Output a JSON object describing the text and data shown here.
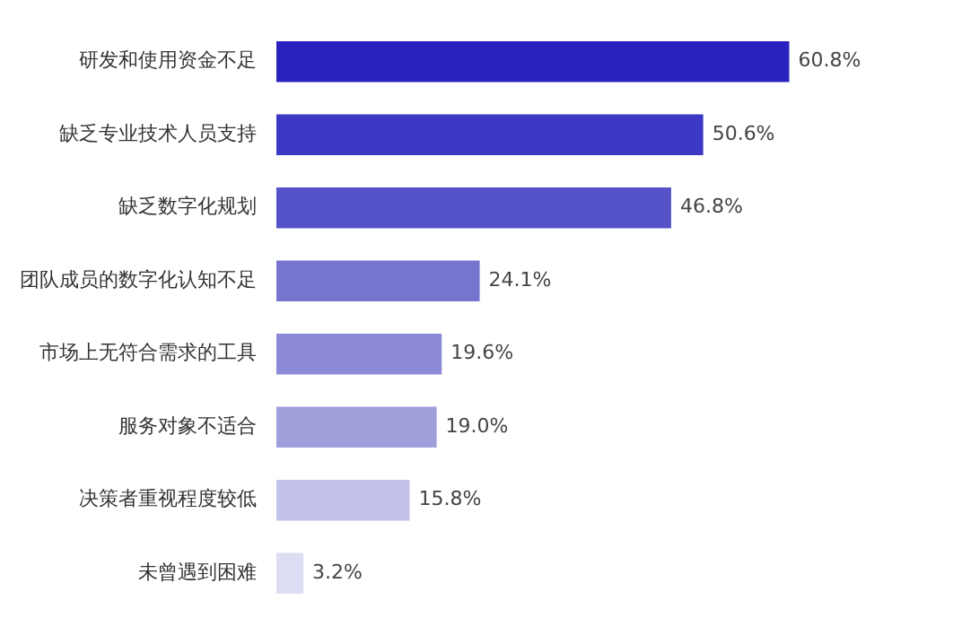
{
  "chart_data": {
    "type": "bar",
    "orientation": "horizontal",
    "categories": [
      "研发和使用资金不足",
      "缺乏专业技术人员支持",
      "缺乏数字化规划",
      "团队成员的数字化认知不足",
      "市场上无符合需求的工具",
      "服务对象不适合",
      "决策者重视程度较低",
      "未曾遇到困难"
    ],
    "values": [
      60.8,
      50.6,
      46.8,
      24.1,
      19.6,
      19.0,
      15.8,
      3.2
    ],
    "value_labels": [
      "60.8%",
      "50.6%",
      "46.8%",
      "24.1%",
      "19.6%",
      "19.0%",
      "15.8%",
      "3.2%"
    ],
    "colors": [
      "#2a22be",
      "#3c38c4",
      "#5452c6",
      "#7774cf",
      "#8c8ad6",
      "#a09fdc",
      "#c3c2ea",
      "#dcdcf3"
    ],
    "legend": false,
    "tick_labels": "y"
  }
}
